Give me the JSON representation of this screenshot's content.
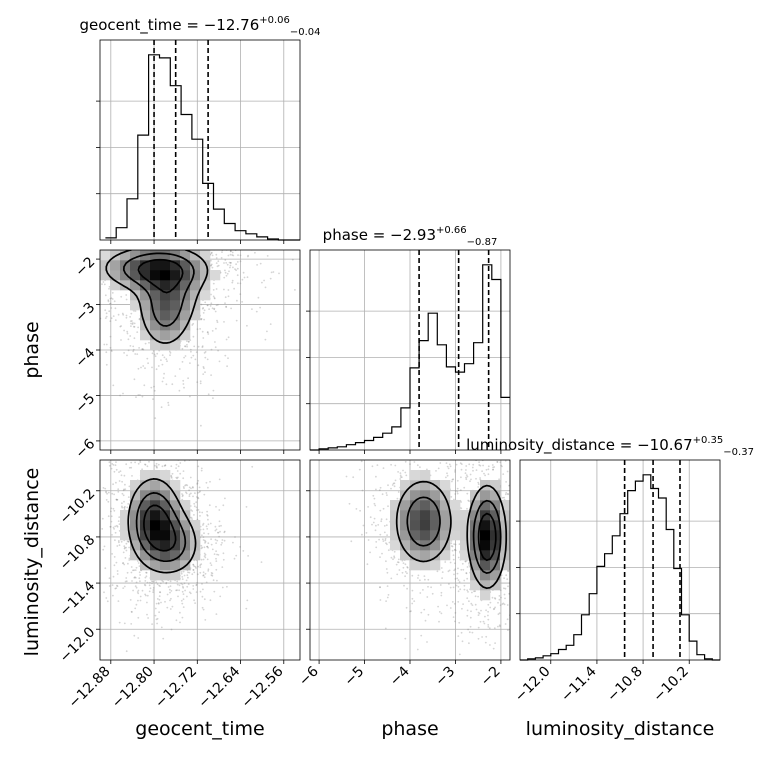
{
  "chart_data": {
    "type": "corner",
    "parameters": [
      "geocent_time",
      "phase",
      "luminosity_distance"
    ],
    "axis_labels": {
      "geocent_time": "geocent_time",
      "phase": "phase",
      "luminosity_distance": "luminosity_distance"
    },
    "ranges": {
      "geocent_time": [
        -12.9,
        -12.53
      ],
      "phase": [
        -6.2,
        -1.8
      ],
      "luminosity_distance": [
        -12.4,
        -9.8
      ]
    },
    "ticks": {
      "geocent_time": [
        -12.88,
        -12.8,
        -12.72,
        -12.64,
        -12.56
      ],
      "phase": [
        -6,
        -5,
        -4,
        -3,
        -2
      ],
      "luminosity_distance_x": [
        -12.0,
        -11.4,
        -10.8,
        -10.2
      ],
      "luminosity_distance_y": [
        -12.0,
        -11.4,
        -10.8,
        -10.2
      ]
    },
    "tick_labels": {
      "geocent_time": [
        "−12.88",
        "−12.80",
        "−12.72",
        "−12.64",
        "−12.56"
      ],
      "phase": [
        "−6",
        "−5",
        "−4",
        "−3",
        "−2"
      ],
      "luminosity_distance_x": [
        "−12.0",
        "−11.4",
        "−10.8",
        "−10.2"
      ],
      "luminosity_distance_y": [
        "−12.0",
        "−11.4",
        "−10.8",
        "−10.2"
      ]
    },
    "titles": {
      "geocent_time": {
        "text": "geocent_time = −12.76",
        "plus": "+0.06",
        "minus": "−0.04"
      },
      "phase": {
        "text": "phase = −2.93",
        "plus": "+0.66",
        "minus": "−0.87"
      },
      "luminosity_distance": {
        "text": "luminosity_distance = −10.67",
        "plus": "+0.35",
        "minus": "−0.37"
      }
    },
    "quantiles": {
      "geocent_time": [
        -12.8,
        -12.76,
        -12.7
      ],
      "phase": [
        -3.8,
        -2.93,
        -2.27
      ],
      "luminosity_distance": [
        -11.04,
        -10.67,
        -10.32
      ]
    },
    "histograms": {
      "geocent_time": {
        "edges": [
          -12.89,
          -12.87,
          -12.85,
          -12.83,
          -12.81,
          -12.79,
          -12.77,
          -12.75,
          -12.73,
          -12.71,
          -12.69,
          -12.67,
          -12.65,
          -12.63,
          -12.61,
          -12.59,
          -12.57,
          -12.55,
          -12.53
        ],
        "counts": [
          2,
          12,
          40,
          102,
          180,
          177,
          150,
          122,
          98,
          55,
          30,
          16,
          9,
          6,
          3,
          1,
          0,
          0
        ]
      },
      "phase": {
        "edges": [
          -6.2,
          -6.0,
          -5.8,
          -5.6,
          -5.4,
          -5.2,
          -5.0,
          -4.8,
          -4.6,
          -4.4,
          -4.2,
          -4.0,
          -3.8,
          -3.6,
          -3.4,
          -3.2,
          -3.0,
          -2.8,
          -2.6,
          -2.4,
          -2.2,
          -2.0,
          -1.8
        ],
        "counts": [
          0,
          1,
          2,
          3,
          5,
          7,
          9,
          12,
          16,
          22,
          40,
          78,
          104,
          130,
          100,
          79,
          74,
          82,
          102,
          176,
          162,
          50
        ]
      },
      "luminosity_distance": {
        "edges": [
          -12.4,
          -12.3,
          -12.2,
          -12.1,
          -12.0,
          -11.9,
          -11.8,
          -11.7,
          -11.6,
          -11.5,
          -11.4,
          -11.3,
          -11.2,
          -11.1,
          -11.0,
          -10.9,
          -10.8,
          -10.7,
          -10.6,
          -10.5,
          -10.4,
          -10.3,
          -10.2,
          -10.1,
          -10.0,
          -9.9,
          -9.8
        ],
        "counts": [
          0,
          1,
          2,
          4,
          6,
          10,
          14,
          24,
          43,
          63,
          89,
          101,
          118,
          139,
          161,
          170,
          176,
          163,
          154,
          124,
          87,
          43,
          18,
          5,
          1,
          0
        ]
      }
    },
    "density": [
      {
        "x": "geocent_time",
        "y": "phase",
        "peaks": [
          [
            -12.8,
            -2.2,
            0.06,
            0.3,
            1.0
          ],
          [
            -12.77,
            -2.7,
            0.04,
            0.5,
            0.55
          ],
          [
            -12.78,
            -3.3,
            0.03,
            0.5,
            0.55
          ]
        ]
      },
      {
        "x": "geocent_time",
        "y": "luminosity_distance",
        "peaks": [
          [
            -12.8,
            -10.6,
            0.03,
            0.35,
            1.0
          ],
          [
            -12.76,
            -10.9,
            0.03,
            0.25,
            0.55
          ]
        ]
      },
      {
        "x": "phase",
        "y": "luminosity_distance",
        "peaks": [
          [
            -2.3,
            -10.8,
            0.25,
            0.4,
            1.0
          ],
          [
            -3.7,
            -10.6,
            0.4,
            0.35,
            0.75
          ]
        ]
      }
    ],
    "contour_levels": [
      0.25,
      0.5,
      0.75
    ],
    "grid": true
  }
}
